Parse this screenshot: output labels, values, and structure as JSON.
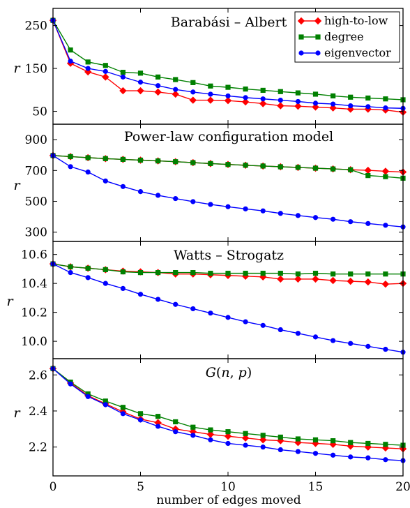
{
  "chart_data": [
    {
      "type": "line",
      "title": "Barabási – Albert",
      "ylabel": "r",
      "xlabel": "",
      "xlim": [
        0,
        20
      ],
      "ylim": [
        20,
        290
      ],
      "yticks": [
        50,
        150,
        250
      ],
      "x": [
        0,
        1,
        2,
        3,
        4,
        5,
        6,
        7,
        8,
        9,
        10,
        11,
        12,
        13,
        14,
        15,
        16,
        17,
        18,
        19,
        20
      ],
      "legend_position": "top-right",
      "legend": [
        "high-to-low",
        "degree",
        "eigenvector"
      ],
      "series": [
        {
          "name": "high-to-low",
          "color": "#ff0000",
          "marker": "diamond",
          "values": [
            262,
            162,
            142,
            130,
            98,
            98,
            95,
            90,
            76,
            76,
            75,
            72,
            68,
            63,
            62,
            60,
            58,
            55,
            55,
            53,
            48
          ]
        },
        {
          "name": "degree",
          "color": "#008000",
          "marker": "square",
          "values": [
            262,
            193,
            165,
            157,
            141,
            139,
            130,
            124,
            117,
            109,
            106,
            102,
            99,
            96,
            93,
            90,
            86,
            83,
            81,
            79,
            77
          ]
        },
        {
          "name": "eigenvector",
          "color": "#0000ff",
          "marker": "circle",
          "values": [
            262,
            167,
            150,
            143,
            130,
            118,
            110,
            101,
            95,
            90,
            86,
            82,
            79,
            76,
            73,
            69,
            67,
            63,
            61,
            58,
            57
          ]
        }
      ]
    },
    {
      "type": "line",
      "title": "Power-law configuration model",
      "ylabel": "r",
      "xlabel": "",
      "xlim": [
        0,
        20
      ],
      "ylim": [
        240,
        1000
      ],
      "yticks": [
        300,
        500,
        700,
        900
      ],
      "x": [
        0,
        1,
        2,
        3,
        4,
        5,
        6,
        7,
        8,
        9,
        10,
        11,
        12,
        13,
        14,
        15,
        16,
        17,
        18,
        19,
        20
      ],
      "series": [
        {
          "name": "high-to-low",
          "color": "#ff0000",
          "marker": "diamond",
          "values": [
            797,
            790,
            783,
            777,
            772,
            767,
            762,
            757,
            751,
            745,
            739,
            734,
            729,
            724,
            720,
            715,
            710,
            705,
            701,
            695,
            690
          ]
        },
        {
          "name": "degree",
          "color": "#008000",
          "marker": "square",
          "values": [
            797,
            790,
            783,
            777,
            772,
            767,
            762,
            757,
            751,
            745,
            739,
            734,
            729,
            724,
            720,
            715,
            710,
            705,
            667,
            660,
            650
          ]
        },
        {
          "name": "eigenvector",
          "color": "#0000ff",
          "marker": "circle",
          "values": [
            797,
            725,
            690,
            632,
            596,
            563,
            539,
            518,
            498,
            480,
            465,
            451,
            438,
            422,
            408,
            395,
            384,
            368,
            356,
            345,
            334
          ]
        }
      ]
    },
    {
      "type": "line",
      "title": "Watts – Strogatz",
      "ylabel": "r",
      "xlabel": "",
      "xlim": [
        0,
        20
      ],
      "ylim": [
        9.88,
        10.69
      ],
      "yticks": [
        "10.0",
        "10.2",
        "10.4",
        "10.6"
      ],
      "x": [
        0,
        1,
        2,
        3,
        4,
        5,
        6,
        7,
        8,
        9,
        10,
        11,
        12,
        13,
        14,
        15,
        16,
        17,
        18,
        19,
        20
      ],
      "series": [
        {
          "name": "high-to-low",
          "color": "#ff0000",
          "marker": "diamond",
          "values": [
            10.535,
            10.515,
            10.505,
            10.495,
            10.485,
            10.48,
            10.475,
            10.465,
            10.465,
            10.46,
            10.455,
            10.45,
            10.445,
            10.43,
            10.43,
            10.43,
            10.42,
            10.415,
            10.41,
            10.395,
            10.4
          ]
        },
        {
          "name": "degree",
          "color": "#008000",
          "marker": "square",
          "values": [
            10.535,
            10.515,
            10.505,
            10.495,
            10.48,
            10.475,
            10.475,
            10.475,
            10.475,
            10.47,
            10.47,
            10.47,
            10.47,
            10.47,
            10.465,
            10.47,
            10.465,
            10.465,
            10.465,
            10.465,
            10.465
          ]
        },
        {
          "name": "eigenvector",
          "color": "#0000ff",
          "marker": "circle",
          "values": [
            10.535,
            10.475,
            10.44,
            10.4,
            10.365,
            10.325,
            10.29,
            10.255,
            10.225,
            10.195,
            10.165,
            10.135,
            10.11,
            10.08,
            10.055,
            10.03,
            10.005,
            9.985,
            9.965,
            9.945,
            9.925
          ]
        }
      ]
    },
    {
      "type": "line",
      "title": "G(n, p)",
      "title_parts": {
        "g": "G",
        "open": "(",
        "n": "n",
        "comma": ", ",
        "p": "p",
        "close": ")"
      },
      "ylabel": "r",
      "xlabel": "number of edges moved",
      "xlim": [
        0,
        20
      ],
      "xticks": [
        "0",
        "5",
        "10",
        "15",
        "20"
      ],
      "ylim": [
        2.04,
        2.69
      ],
      "yticks": [
        "2.2",
        "2.4",
        "2.6"
      ],
      "x": [
        0,
        1,
        2,
        3,
        4,
        5,
        6,
        7,
        8,
        9,
        10,
        11,
        12,
        13,
        14,
        15,
        16,
        17,
        18,
        19,
        20
      ],
      "series": [
        {
          "name": "high-to-low",
          "color": "#ff0000",
          "marker": "diamond",
          "values": [
            2.635,
            2.555,
            2.485,
            2.44,
            2.395,
            2.355,
            2.335,
            2.3,
            2.285,
            2.27,
            2.26,
            2.25,
            2.24,
            2.235,
            2.225,
            2.22,
            2.215,
            2.205,
            2.2,
            2.195,
            2.19
          ]
        },
        {
          "name": "degree",
          "color": "#008000",
          "marker": "square",
          "values": [
            2.635,
            2.56,
            2.495,
            2.455,
            2.42,
            2.385,
            2.37,
            2.34,
            2.31,
            2.295,
            2.285,
            2.275,
            2.265,
            2.255,
            2.245,
            2.24,
            2.235,
            2.225,
            2.22,
            2.215,
            2.21
          ]
        },
        {
          "name": "eigenvector",
          "color": "#0000ff",
          "marker": "circle",
          "values": [
            2.635,
            2.55,
            2.48,
            2.435,
            2.385,
            2.35,
            2.315,
            2.285,
            2.265,
            2.24,
            2.22,
            2.21,
            2.2,
            2.185,
            2.175,
            2.165,
            2.155,
            2.145,
            2.14,
            2.13,
            2.125
          ]
        }
      ]
    }
  ]
}
